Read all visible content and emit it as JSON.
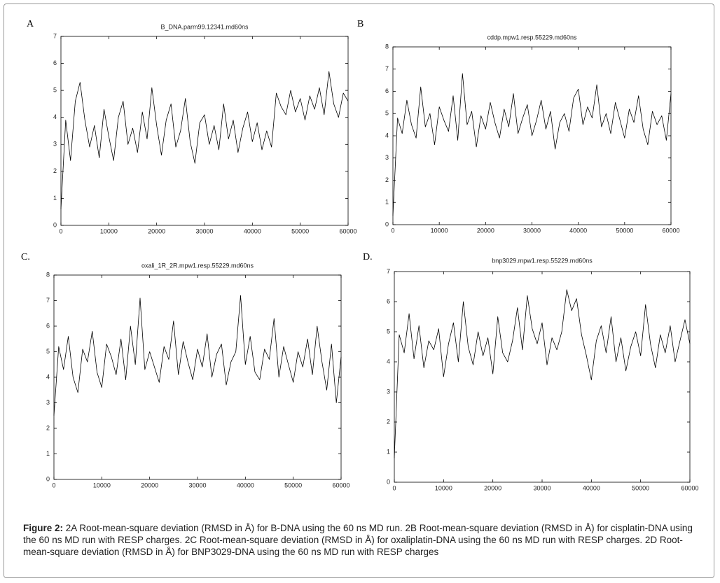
{
  "chart_data": [
    {
      "type": "line",
      "panel": "A",
      "title": "B_DNA.parm99.12341.md60ns",
      "x": [
        0,
        1000,
        2000,
        3000,
        4000,
        5000,
        6000,
        7000,
        8000,
        9000,
        10000,
        11000,
        12000,
        13000,
        14000,
        15000,
        16000,
        17000,
        18000,
        19000,
        20000,
        21000,
        22000,
        23000,
        24000,
        25000,
        26000,
        27000,
        28000,
        29000,
        30000,
        31000,
        32000,
        33000,
        34000,
        35000,
        36000,
        37000,
        38000,
        39000,
        40000,
        41000,
        42000,
        43000,
        44000,
        45000,
        46000,
        47000,
        48000,
        49000,
        50000,
        51000,
        52000,
        53000,
        54000,
        55000,
        56000,
        57000,
        58000,
        59000,
        60000
      ],
      "values": [
        0.6,
        3.9,
        2.4,
        4.6,
        5.3,
        3.9,
        2.9,
        3.7,
        2.5,
        4.3,
        3.3,
        2.4,
        4.0,
        4.6,
        3.0,
        3.6,
        2.7,
        4.2,
        3.2,
        5.1,
        3.7,
        2.6,
        3.9,
        4.5,
        2.9,
        3.5,
        4.7,
        3.1,
        2.3,
        3.8,
        4.1,
        3.0,
        3.7,
        2.8,
        4.5,
        3.2,
        3.9,
        2.7,
        3.6,
        4.2,
        3.1,
        3.8,
        2.8,
        3.5,
        2.9,
        4.9,
        4.4,
        4.1,
        5.0,
        4.2,
        4.7,
        3.9,
        4.8,
        4.3,
        5.1,
        4.1,
        5.7,
        4.5,
        4.0,
        4.9,
        4.6
      ],
      "color": "#000000",
      "xlim": [
        0,
        60000
      ],
      "ylim": [
        0,
        7
      ],
      "xticks": [
        0,
        10000,
        20000,
        30000,
        40000,
        50000,
        60000
      ],
      "yticks": [
        0,
        1,
        2,
        3,
        4,
        5,
        6,
        7
      ]
    },
    {
      "type": "line",
      "panel": "B",
      "title": "cddp.mpw1.resp.55229.md60ns",
      "x": [
        0,
        1000,
        2000,
        3000,
        4000,
        5000,
        6000,
        7000,
        8000,
        9000,
        10000,
        11000,
        12000,
        13000,
        14000,
        15000,
        16000,
        17000,
        18000,
        19000,
        20000,
        21000,
        22000,
        23000,
        24000,
        25000,
        26000,
        27000,
        28000,
        29000,
        30000,
        31000,
        32000,
        33000,
        34000,
        35000,
        36000,
        37000,
        38000,
        39000,
        40000,
        41000,
        42000,
        43000,
        44000,
        45000,
        46000,
        47000,
        48000,
        49000,
        50000,
        51000,
        52000,
        53000,
        54000,
        55000,
        56000,
        57000,
        58000,
        59000,
        60000
      ],
      "values": [
        0.4,
        4.8,
        4.1,
        5.6,
        4.5,
        3.9,
        6.2,
        4.4,
        5.0,
        3.6,
        5.3,
        4.7,
        4.2,
        5.8,
        3.8,
        6.8,
        4.5,
        5.1,
        3.5,
        4.9,
        4.3,
        5.5,
        4.6,
        3.9,
        5.2,
        4.4,
        5.9,
        4.1,
        4.8,
        5.4,
        4.0,
        4.7,
        5.6,
        4.3,
        5.1,
        3.4,
        4.6,
        5.0,
        4.2,
        5.7,
        6.1,
        4.5,
        5.3,
        4.8,
        6.3,
        4.4,
        5.0,
        4.1,
        5.5,
        4.7,
        3.9,
        5.2,
        4.6,
        5.8,
        4.3,
        3.6,
        5.1,
        4.5,
        4.9,
        3.8,
        5.9
      ],
      "color": "#000000",
      "xlim": [
        0,
        60000
      ],
      "ylim": [
        0,
        8
      ],
      "xticks": [
        0,
        10000,
        20000,
        30000,
        40000,
        50000,
        60000
      ],
      "yticks": [
        0,
        1,
        2,
        3,
        4,
        5,
        6,
        7,
        8
      ]
    },
    {
      "type": "line",
      "panel": "C.",
      "title": "oxali_1R_2R.mpw1.resp.55229.md60ns",
      "x": [
        0,
        1000,
        2000,
        3000,
        4000,
        5000,
        6000,
        7000,
        8000,
        9000,
        10000,
        11000,
        12000,
        13000,
        14000,
        15000,
        16000,
        17000,
        18000,
        19000,
        20000,
        21000,
        22000,
        23000,
        24000,
        25000,
        26000,
        27000,
        28000,
        29000,
        30000,
        31000,
        32000,
        33000,
        34000,
        35000,
        36000,
        37000,
        38000,
        39000,
        40000,
        41000,
        42000,
        43000,
        44000,
        45000,
        46000,
        47000,
        48000,
        49000,
        50000,
        51000,
        52000,
        53000,
        54000,
        55000,
        56000,
        57000,
        58000,
        59000,
        60000
      ],
      "values": [
        2.5,
        5.2,
        4.3,
        5.6,
        4.0,
        3.4,
        5.1,
        4.6,
        5.8,
        4.2,
        3.6,
        5.3,
        4.8,
        4.1,
        5.5,
        3.9,
        6.0,
        4.5,
        7.1,
        4.3,
        5.0,
        4.4,
        3.8,
        5.2,
        4.7,
        6.2,
        4.1,
        5.4,
        4.6,
        3.9,
        5.1,
        4.4,
        5.7,
        4.0,
        4.9,
        5.3,
        3.7,
        4.6,
        5.0,
        7.2,
        4.5,
        5.6,
        4.2,
        3.9,
        5.1,
        4.7,
        6.3,
        4.0,
        5.2,
        4.5,
        3.8,
        5.0,
        4.4,
        5.5,
        4.1,
        6.0,
        4.6,
        3.5,
        5.3,
        3.0,
        4.8
      ],
      "color": "#000000",
      "xlim": [
        0,
        60000
      ],
      "ylim": [
        0,
        8
      ],
      "xticks": [
        0,
        10000,
        20000,
        30000,
        40000,
        50000,
        60000
      ],
      "yticks": [
        0,
        1,
        2,
        3,
        4,
        5,
        6,
        7,
        8
      ]
    },
    {
      "type": "line",
      "panel": "D.",
      "title": "bnp3029.mpw1.resp.55229.md60ns",
      "x": [
        0,
        1000,
        2000,
        3000,
        4000,
        5000,
        6000,
        7000,
        8000,
        9000,
        10000,
        11000,
        12000,
        13000,
        14000,
        15000,
        16000,
        17000,
        18000,
        19000,
        20000,
        21000,
        22000,
        23000,
        24000,
        25000,
        26000,
        27000,
        28000,
        29000,
        30000,
        31000,
        32000,
        33000,
        34000,
        35000,
        36000,
        37000,
        38000,
        39000,
        40000,
        41000,
        42000,
        43000,
        44000,
        45000,
        46000,
        47000,
        48000,
        49000,
        50000,
        51000,
        52000,
        53000,
        54000,
        55000,
        56000,
        57000,
        58000,
        59000,
        60000
      ],
      "values": [
        0.8,
        4.9,
        4.3,
        5.6,
        4.1,
        5.2,
        3.8,
        4.7,
        4.4,
        5.1,
        3.5,
        4.6,
        5.3,
        4.0,
        6.0,
        4.5,
        3.9,
        5.0,
        4.2,
        4.8,
        3.6,
        5.5,
        4.3,
        4.0,
        4.7,
        5.8,
        4.4,
        6.2,
        5.1,
        4.6,
        5.3,
        3.9,
        4.8,
        4.4,
        5.0,
        6.4,
        5.7,
        6.1,
        4.9,
        4.2,
        3.4,
        4.7,
        5.2,
        4.3,
        5.5,
        4.0,
        4.8,
        3.7,
        4.5,
        5.0,
        4.2,
        5.9,
        4.6,
        3.8,
        4.9,
        4.3,
        5.2,
        4.0,
        4.7,
        5.4,
        4.6
      ],
      "color": "#000000",
      "xlim": [
        0,
        60000
      ],
      "ylim": [
        0,
        7
      ],
      "xticks": [
        0,
        10000,
        20000,
        30000,
        40000,
        50000,
        60000
      ],
      "yticks": [
        0,
        1,
        2,
        3,
        4,
        5,
        6,
        7
      ]
    }
  ],
  "caption": {
    "label": "Figure 2:",
    "text": "2A Root-mean-square deviation (RMSD in Å) for B-DNA using the 60 ns MD run. 2B Root-mean-square deviation (RMSD in Å) for cisplatin-DNA using the 60 ns MD run with RESP charges. 2C Root-mean-square deviation (RMSD in Å) for oxaliplatin-DNA using the 60 ns MD run with RESP charges. 2D Root-mean-square deviation (RMSD in Å) for BNP3029-DNA using the 60 ns MD run with RESP charges"
  }
}
